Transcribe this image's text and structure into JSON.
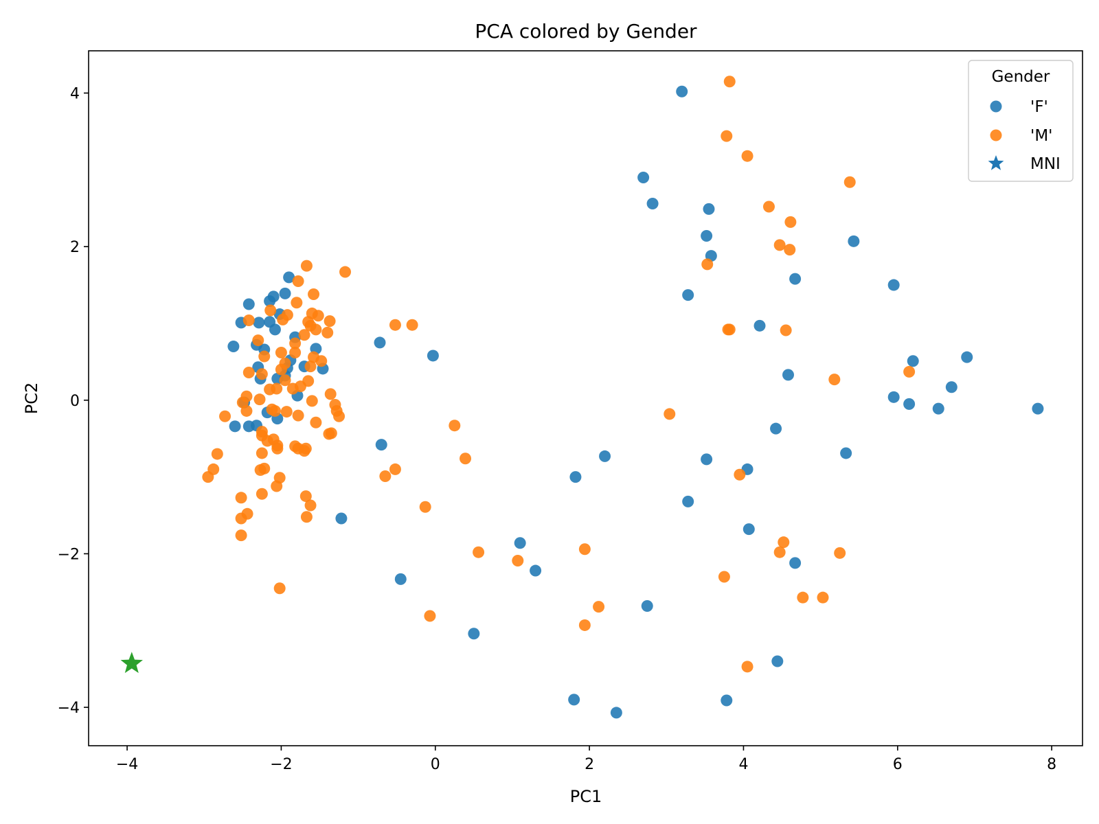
{
  "chart_data": {
    "type": "scatter",
    "title": "PCA colored by Gender",
    "xlabel": "PC1",
    "ylabel": "PC2",
    "xlim": [
      -4.5,
      8.4
    ],
    "ylim": [
      -4.5,
      4.55
    ],
    "xticks": [
      -4,
      -2,
      0,
      2,
      4,
      6,
      8
    ],
    "yticks": [
      -4,
      -2,
      0,
      2,
      4
    ],
    "xtick_labels": [
      "−4",
      "−2",
      "0",
      "2",
      "4",
      "6",
      "8"
    ],
    "ytick_labels": [
      "−4",
      "−2",
      "0",
      "2",
      "4"
    ],
    "grid": false,
    "legend": {
      "title": "Gender",
      "placement": "top-right",
      "entries": [
        "'F'",
        "'M'",
        "MNI"
      ]
    },
    "series": [
      {
        "name": "'F'",
        "color": "#1f77b4",
        "marker": "circle",
        "points": [
          [
            3.2,
            4.02
          ],
          [
            2.7,
            2.9
          ],
          [
            2.82,
            2.56
          ],
          [
            3.55,
            2.49
          ],
          [
            3.52,
            2.14
          ],
          [
            3.58,
            1.88
          ],
          [
            5.43,
            2.07
          ],
          [
            4.67,
            1.58
          ],
          [
            5.95,
            1.5
          ],
          [
            3.28,
            1.37
          ],
          [
            4.21,
            0.97
          ],
          [
            4.58,
            0.33
          ],
          [
            6.2,
            0.51
          ],
          [
            6.9,
            0.56
          ],
          [
            6.7,
            0.17
          ],
          [
            5.95,
            0.04
          ],
          [
            6.15,
            -0.05
          ],
          [
            6.53,
            -0.11
          ],
          [
            7.82,
            -0.11
          ],
          [
            4.42,
            -0.37
          ],
          [
            5.33,
            -0.69
          ],
          [
            3.52,
            -0.77
          ],
          [
            4.05,
            -0.9
          ],
          [
            2.2,
            -0.73
          ],
          [
            1.82,
            -1.0
          ],
          [
            3.28,
            -1.32
          ],
          [
            4.07,
            -1.68
          ],
          [
            4.67,
            -2.12
          ],
          [
            1.1,
            -1.86
          ],
          [
            1.3,
            -2.22
          ],
          [
            -0.45,
            -2.33
          ],
          [
            2.75,
            -2.68
          ],
          [
            0.5,
            -3.04
          ],
          [
            4.44,
            -3.4
          ],
          [
            1.8,
            -3.9
          ],
          [
            3.78,
            -3.91
          ],
          [
            2.35,
            -4.07
          ],
          [
            -0.72,
            0.75
          ],
          [
            -0.03,
            0.58
          ],
          [
            -0.7,
            -0.58
          ],
          [
            -1.22,
            -1.54
          ],
          [
            -1.9,
            1.6
          ],
          [
            -1.95,
            1.39
          ],
          [
            -2.1,
            1.35
          ],
          [
            -2.15,
            1.29
          ],
          [
            -2.42,
            1.25
          ],
          [
            -2.02,
            1.12
          ],
          [
            -2.15,
            1.02
          ],
          [
            -2.29,
            1.01
          ],
          [
            -2.52,
            1.01
          ],
          [
            -2.08,
            0.92
          ],
          [
            -1.82,
            0.82
          ],
          [
            -2.32,
            0.72
          ],
          [
            -2.62,
            0.7
          ],
          [
            -2.22,
            0.66
          ],
          [
            -1.55,
            0.67
          ],
          [
            -1.88,
            0.52
          ],
          [
            -1.7,
            0.44
          ],
          [
            -1.92,
            0.42
          ],
          [
            -2.3,
            0.43
          ],
          [
            -1.46,
            0.41
          ],
          [
            -2.27,
            0.28
          ],
          [
            -2.05,
            0.28
          ],
          [
            -1.95,
            0.32
          ],
          [
            -1.79,
            0.06
          ],
          [
            -2.48,
            -0.03
          ],
          [
            -2.18,
            -0.16
          ],
          [
            -2.05,
            -0.24
          ],
          [
            -2.6,
            -0.34
          ],
          [
            -2.42,
            -0.34
          ],
          [
            -2.32,
            -0.33
          ]
        ]
      },
      {
        "name": "'M'",
        "color": "#ff7f0e",
        "marker": "circle",
        "points": [
          [
            3.82,
            4.15
          ],
          [
            3.78,
            3.44
          ],
          [
            4.05,
            3.18
          ],
          [
            5.38,
            2.84
          ],
          [
            4.33,
            2.52
          ],
          [
            4.61,
            2.32
          ],
          [
            4.47,
            2.02
          ],
          [
            4.6,
            1.96
          ],
          [
            3.53,
            1.77
          ],
          [
            3.8,
            0.92
          ],
          [
            3.82,
            0.92
          ],
          [
            4.55,
            0.91
          ],
          [
            5.18,
            0.27
          ],
          [
            6.15,
            0.37
          ],
          [
            3.04,
            -0.18
          ],
          [
            3.95,
            -0.97
          ],
          [
            3.75,
            -2.3
          ],
          [
            4.52,
            -1.85
          ],
          [
            4.47,
            -1.98
          ],
          [
            5.25,
            -1.99
          ],
          [
            4.77,
            -2.57
          ],
          [
            5.03,
            -2.57
          ],
          [
            4.05,
            -3.47
          ],
          [
            1.94,
            -1.94
          ],
          [
            2.12,
            -2.69
          ],
          [
            1.94,
            -2.93
          ],
          [
            1.07,
            -2.09
          ],
          [
            0.56,
            -1.98
          ],
          [
            -0.07,
            -2.81
          ],
          [
            -0.13,
            -1.39
          ],
          [
            0.39,
            -0.76
          ],
          [
            0.25,
            -0.33
          ],
          [
            -0.52,
            -0.9
          ],
          [
            -0.65,
            -0.99
          ],
          [
            -0.52,
            0.98
          ],
          [
            -0.3,
            0.98
          ],
          [
            -1.17,
            1.67
          ],
          [
            -1.67,
            1.75
          ],
          [
            -1.78,
            1.55
          ],
          [
            -1.58,
            1.38
          ],
          [
            -1.8,
            1.27
          ],
          [
            -2.14,
            1.17
          ],
          [
            -1.6,
            1.13
          ],
          [
            -1.92,
            1.11
          ],
          [
            -1.52,
            1.1
          ],
          [
            -1.98,
            1.05
          ],
          [
            -2.42,
            1.04
          ],
          [
            -1.65,
            1.02
          ],
          [
            -1.37,
            1.03
          ],
          [
            -1.62,
            0.97
          ],
          [
            -1.55,
            0.92
          ],
          [
            -1.4,
            0.88
          ],
          [
            -1.7,
            0.85
          ],
          [
            -1.82,
            0.74
          ],
          [
            -2.3,
            0.78
          ],
          [
            -2.0,
            0.62
          ],
          [
            -1.82,
            0.62
          ],
          [
            -2.22,
            0.57
          ],
          [
            -1.58,
            0.56
          ],
          [
            -1.48,
            0.51
          ],
          [
            -1.95,
            0.48
          ],
          [
            -2.0,
            0.4
          ],
          [
            -1.62,
            0.44
          ],
          [
            -2.42,
            0.36
          ],
          [
            -2.25,
            0.34
          ],
          [
            -1.65,
            0.25
          ],
          [
            -1.95,
            0.26
          ],
          [
            -2.15,
            0.14
          ],
          [
            -2.06,
            0.15
          ],
          [
            -1.85,
            0.15
          ],
          [
            -1.75,
            0.18
          ],
          [
            -2.45,
            0.05
          ],
          [
            -2.28,
            0.01
          ],
          [
            -1.6,
            -0.01
          ],
          [
            -1.36,
            0.08
          ],
          [
            -1.3,
            -0.06
          ],
          [
            -1.28,
            -0.14
          ],
          [
            -1.25,
            -0.21
          ],
          [
            -1.78,
            -0.2
          ],
          [
            -2.45,
            -0.14
          ],
          [
            -2.12,
            -0.12
          ],
          [
            -2.08,
            -0.14
          ],
          [
            -1.93,
            -0.15
          ],
          [
            -2.5,
            -0.03
          ],
          [
            -2.73,
            -0.21
          ],
          [
            -1.55,
            -0.29
          ],
          [
            -1.38,
            -0.44
          ],
          [
            -1.35,
            -0.43
          ],
          [
            -2.25,
            -0.41
          ],
          [
            -2.1,
            -0.51
          ],
          [
            -2.18,
            -0.53
          ],
          [
            -2.25,
            -0.46
          ],
          [
            -1.82,
            -0.6
          ],
          [
            -1.78,
            -0.63
          ],
          [
            -1.68,
            -0.63
          ],
          [
            -2.05,
            -0.59
          ],
          [
            -1.7,
            -0.66
          ],
          [
            -2.05,
            -0.63
          ],
          [
            -2.25,
            -0.69
          ],
          [
            -2.83,
            -0.7
          ],
          [
            -2.88,
            -0.9
          ],
          [
            -2.95,
            -1.0
          ],
          [
            -2.22,
            -0.89
          ],
          [
            -2.27,
            -0.91
          ],
          [
            -2.02,
            -1.01
          ],
          [
            -2.06,
            -1.12
          ],
          [
            -2.25,
            -1.22
          ],
          [
            -1.68,
            -1.25
          ],
          [
            -1.62,
            -1.37
          ],
          [
            -2.52,
            -1.27
          ],
          [
            -2.44,
            -1.48
          ],
          [
            -2.52,
            -1.54
          ],
          [
            -1.67,
            -1.52
          ],
          [
            -2.52,
            -1.76
          ],
          [
            -2.02,
            -2.45
          ]
        ]
      },
      {
        "name": "MNI",
        "color": "#2ca02c",
        "marker": "star",
        "points": [
          [
            -3.94,
            -3.43
          ]
        ]
      }
    ]
  }
}
